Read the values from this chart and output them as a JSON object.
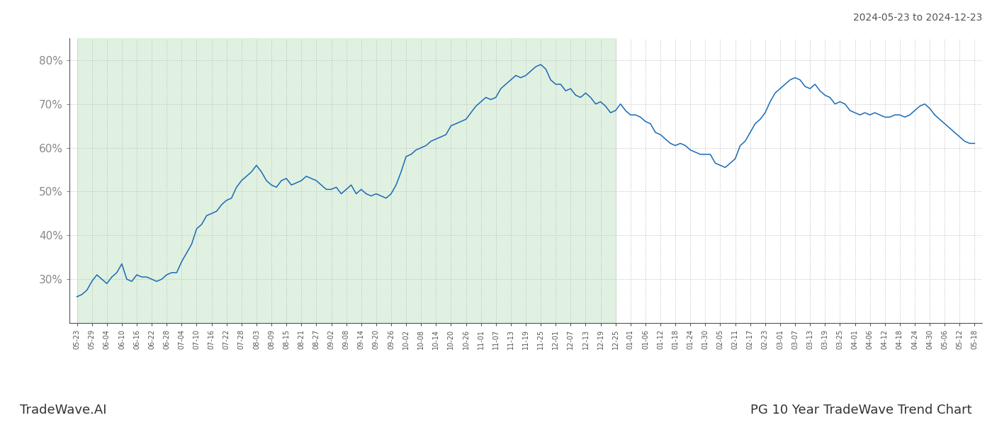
{
  "title_top_right": "2024-05-23 to 2024-12-23",
  "title_bottom_left": "TradeWave.AI",
  "title_bottom_right": "PG 10 Year TradeWave Trend Chart",
  "background_color": "#ffffff",
  "line_color": "#1a6ab5",
  "shaded_color": "#c8e6c9",
  "shaded_alpha": 0.55,
  "ylim": [
    20,
    85
  ],
  "yticks": [
    30,
    40,
    50,
    60,
    70,
    80
  ],
  "grid_color": "#bbbbbb",
  "grid_style": ":",
  "shaded_end_label": "12-25",
  "x_labels": [
    "05-23",
    "05-29",
    "06-04",
    "06-10",
    "06-16",
    "06-22",
    "06-28",
    "07-04",
    "07-10",
    "07-16",
    "07-22",
    "07-28",
    "08-03",
    "08-09",
    "08-15",
    "08-21",
    "08-27",
    "09-02",
    "09-08",
    "09-14",
    "09-20",
    "09-26",
    "10-02",
    "10-08",
    "10-14",
    "10-20",
    "10-26",
    "11-01",
    "11-07",
    "11-13",
    "11-19",
    "11-25",
    "12-01",
    "12-07",
    "12-13",
    "12-19",
    "12-25",
    "01-01",
    "01-06",
    "01-12",
    "01-18",
    "01-24",
    "01-30",
    "02-05",
    "02-11",
    "02-17",
    "02-23",
    "03-01",
    "03-07",
    "03-13",
    "03-19",
    "03-25",
    "04-01",
    "04-06",
    "04-12",
    "04-18",
    "04-24",
    "04-30",
    "05-06",
    "05-12",
    "05-18"
  ],
  "y_values": [
    26.0,
    26.5,
    27.5,
    29.5,
    31.0,
    30.0,
    29.0,
    30.5,
    31.5,
    33.5,
    30.0,
    29.5,
    31.0,
    30.5,
    30.5,
    30.0,
    29.5,
    30.0,
    31.0,
    31.5,
    31.5,
    34.0,
    36.0,
    38.0,
    41.5,
    42.5,
    44.5,
    45.0,
    45.5,
    47.0,
    48.0,
    48.5,
    51.0,
    52.5,
    53.5,
    54.5,
    56.0,
    54.5,
    52.5,
    51.5,
    51.0,
    52.5,
    53.0,
    51.5,
    52.0,
    52.5,
    53.5,
    53.0,
    52.5,
    51.5,
    50.5,
    50.5,
    51.0,
    49.5,
    50.5,
    51.5,
    49.5,
    50.5,
    49.5,
    49.0,
    49.5,
    49.0,
    48.5,
    49.5,
    51.5,
    54.5,
    58.0,
    58.5,
    59.5,
    60.0,
    60.5,
    61.5,
    62.0,
    62.5,
    63.0,
    65.0,
    65.5,
    66.0,
    66.5,
    68.0,
    69.5,
    70.5,
    71.5,
    71.0,
    71.5,
    73.5,
    74.5,
    75.5,
    76.5,
    76.0,
    76.5,
    77.5,
    78.5,
    79.0,
    78.0,
    75.5,
    74.5,
    74.5,
    73.0,
    73.5,
    72.0,
    71.5,
    72.5,
    71.5,
    70.0,
    70.5,
    69.5,
    68.0,
    68.5,
    70.0,
    68.5,
    67.5,
    67.5,
    67.0,
    66.0,
    65.5,
    63.5,
    63.0,
    62.0,
    61.0,
    60.5,
    61.0,
    60.5,
    59.5,
    59.0,
    58.5,
    58.5,
    58.5,
    56.5,
    56.0,
    55.5,
    56.5,
    57.5,
    60.5,
    61.5,
    63.5,
    65.5,
    66.5,
    68.0,
    70.5,
    72.5,
    73.5,
    74.5,
    75.5,
    76.0,
    75.5,
    74.0,
    73.5,
    74.5,
    73.0,
    72.0,
    71.5,
    70.0,
    70.5,
    70.0,
    68.5,
    68.0,
    67.5,
    68.0,
    67.5,
    68.0,
    67.5,
    67.0,
    67.0,
    67.5,
    67.5,
    67.0,
    67.5,
    68.5,
    69.5,
    70.0,
    69.0,
    67.5,
    66.5,
    65.5,
    64.5,
    63.5,
    62.5,
    61.5,
    61.0,
    61.0
  ]
}
